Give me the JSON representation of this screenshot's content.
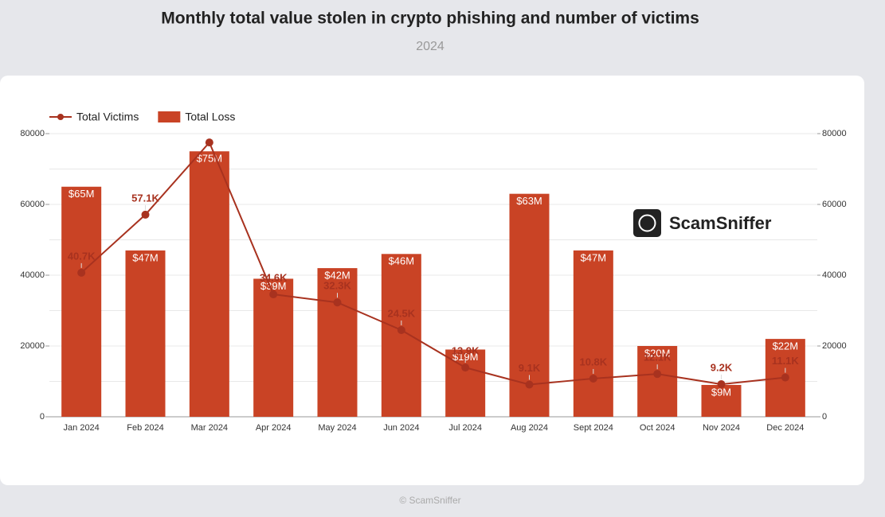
{
  "chart_data": {
    "type": "bar-line",
    "title": "Monthly total value stolen in crypto phishing and number of victims",
    "subtitle": "2024",
    "categories": [
      "Jan 2024",
      "Feb 2024",
      "Mar 2024",
      "Apr 2024",
      "May 2024",
      "Jun 2024",
      "Jul 2024",
      "Aug 2024",
      "Sept 2024",
      "Oct 2024",
      "Nov 2024",
      "Dec 2024"
    ],
    "series": [
      {
        "name": "Total Victims",
        "type": "line",
        "axis": "y2",
        "color": "#a8321f",
        "values": [
          40700,
          57100,
          77500,
          34600,
          32300,
          24500,
          13900,
          9100,
          10800,
          12100,
          9200,
          11100
        ],
        "value_labels": [
          "40.7K",
          "57.1K",
          null,
          "34.6K",
          "32.3K",
          "24.5K",
          "13.9K",
          "9.1K",
          "10.8K",
          "12.1K",
          "9.2K",
          "11.1K"
        ]
      },
      {
        "name": "Total Loss",
        "type": "bar",
        "color": "#c94325",
        "values": [
          65000,
          47000,
          75000,
          39000,
          42000,
          46000,
          19000,
          63000,
          47000,
          20000,
          9000,
          22000
        ],
        "value_labels": [
          "$65M",
          "$47M",
          "$75M",
          "$39M",
          "$42M",
          "$46M",
          "$19M",
          "$63M",
          "$47M",
          "$20M",
          "$9M",
          "$22M"
        ]
      }
    ],
    "ylim": [
      0,
      80000
    ],
    "yticks": [
      0,
      20000,
      40000,
      60000,
      80000
    ],
    "y2lim": [
      0,
      80000
    ],
    "y2ticks": [
      0,
      20000,
      40000,
      60000,
      80000
    ],
    "ygrid": [
      10000,
      20000,
      30000,
      40000,
      50000,
      60000,
      70000,
      80000
    ],
    "legend": "top-left",
    "watermark": "ScamSniffer",
    "footer": "© ScamSniffer"
  }
}
